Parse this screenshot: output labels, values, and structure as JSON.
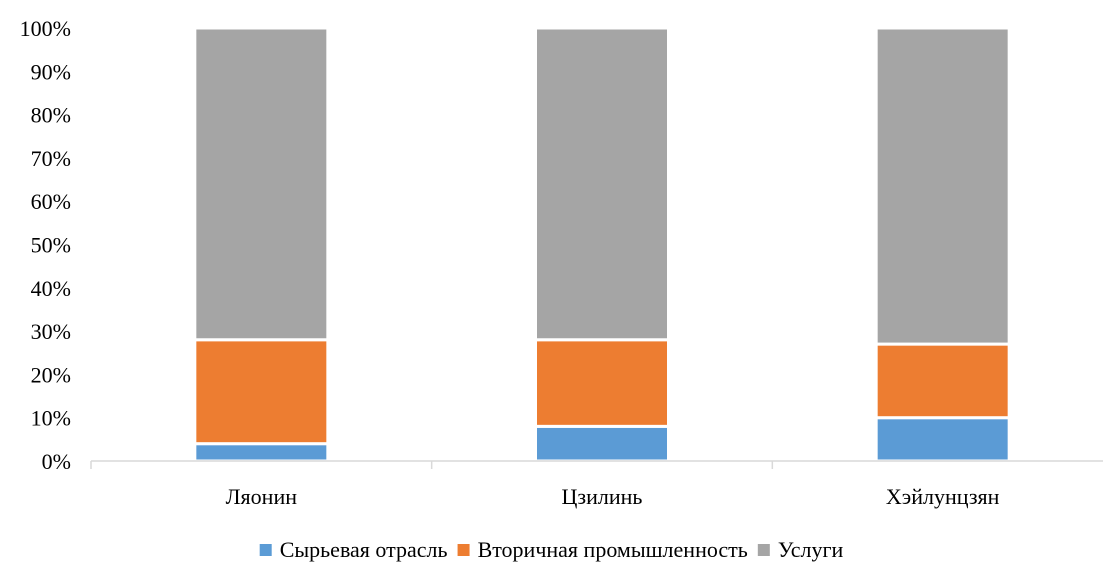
{
  "chart_data": {
    "type": "bar",
    "stacked": true,
    "normalized": true,
    "categories": [
      "Ляонин",
      "Цзилинь",
      "Хэйлунцзян"
    ],
    "series": [
      {
        "name": "Сырьевая отрасль",
        "values": [
          4,
          8,
          10
        ],
        "color": "#5B9BD5"
      },
      {
        "name": "Вторичная промышленность",
        "values": [
          24,
          20,
          17
        ],
        "color": "#ED7D31"
      },
      {
        "name": "Услуги",
        "values": [
          72,
          72,
          73
        ],
        "color": "#A5A5A5"
      }
    ],
    "yticks": [
      "0%",
      "10%",
      "20%",
      "30%",
      "40%",
      "50%",
      "60%",
      "70%",
      "80%",
      "90%",
      "100%"
    ],
    "ylim": [
      0,
      100
    ],
    "grid": false,
    "legend_position": "bottom"
  }
}
